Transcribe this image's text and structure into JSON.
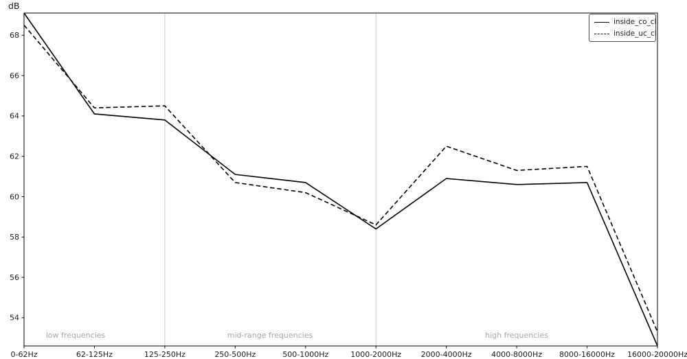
{
  "chart_data": {
    "type": "line",
    "title": "",
    "ylabel": "dB",
    "xlabel": "",
    "categories": [
      "0-62Hz",
      "62-125Hz",
      "125-250Hz",
      "250-500Hz",
      "500-1000Hz",
      "1000-2000Hz",
      "2000-4000Hz",
      "4000-8000Hz",
      "8000-16000Hz",
      "16000-20000Hz"
    ],
    "series": [
      {
        "name": "inside_co_cl",
        "line_style": "solid",
        "color": "#000000",
        "values": [
          69.1,
          64.1,
          63.8,
          61.1,
          60.7,
          58.4,
          60.9,
          60.6,
          60.7,
          52.6
        ]
      },
      {
        "name": "inside_uc_cl",
        "line_style": "dashed",
        "color": "#000000",
        "values": [
          68.5,
          64.4,
          64.5,
          60.7,
          60.2,
          58.6,
          62.5,
          61.3,
          61.5,
          53.3
        ]
      }
    ],
    "ylim": [
      52.6,
      69.1
    ],
    "yticks": [
      54,
      56,
      58,
      60,
      62,
      64,
      66,
      68
    ],
    "grid": "vertical-region-separators-only",
    "gridline_category_indices": [
      2,
      5
    ],
    "legend_position": "upper-right",
    "regions": [
      {
        "label": "low frequencies"
      },
      {
        "label": "mid-range frequencies"
      },
      {
        "label": "high frequencies"
      }
    ],
    "colors": {
      "line": "#000000",
      "gridline": "#c8c8c8",
      "axis": "#000000",
      "tick_text": "#1a1a1a",
      "region_label": "#a6a6a6",
      "background": "#ffffff"
    }
  }
}
